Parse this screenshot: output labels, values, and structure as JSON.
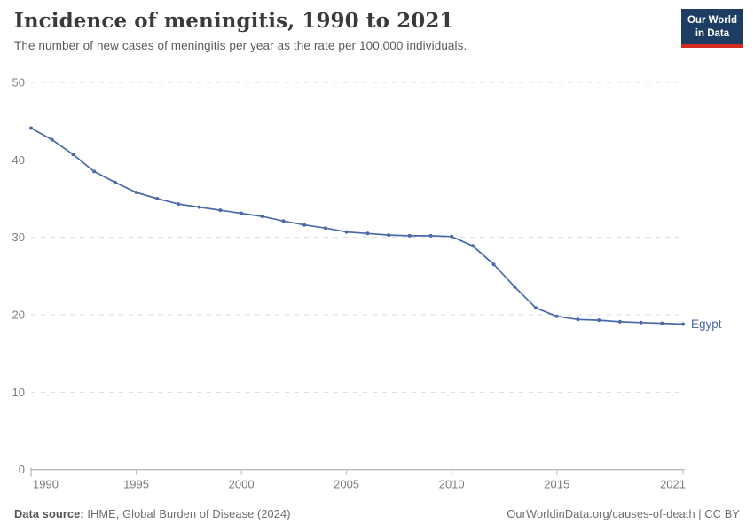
{
  "header": {
    "title": "Incidence of meningitis, 1990 to 2021",
    "subtitle": "The number of new cases of meningitis per year as the rate per 100,000 individuals.",
    "logo": {
      "line1": "Our World",
      "line2": "in Data",
      "bg_color": "#1d3d63",
      "accent_color": "#d42b21"
    }
  },
  "chart_data": {
    "type": "line",
    "title": "Incidence of meningitis, 1990 to 2021",
    "xlabel": "",
    "ylabel": "",
    "xlim": [
      1990,
      2021
    ],
    "ylim": [
      0,
      50
    ],
    "xticks": [
      1990,
      1995,
      2000,
      2005,
      2010,
      2015,
      2021
    ],
    "yticks": [
      0,
      10,
      20,
      30,
      40,
      50
    ],
    "grid": "horizontal-dashed",
    "legend_position": "end-of-line-label",
    "series": [
      {
        "name": "Egypt",
        "color": "#4a69a8",
        "x": [
          1990,
          1991,
          1992,
          1993,
          1994,
          1995,
          1996,
          1997,
          1998,
          1999,
          2000,
          2001,
          2002,
          2003,
          2004,
          2005,
          2006,
          2007,
          2008,
          2009,
          2010,
          2011,
          2012,
          2013,
          2014,
          2015,
          2016,
          2017,
          2018,
          2019,
          2020,
          2021
        ],
        "values": [
          44.1,
          42.6,
          40.7,
          38.5,
          37.1,
          35.8,
          35.0,
          34.3,
          33.9,
          33.5,
          33.1,
          32.7,
          32.1,
          31.6,
          31.2,
          30.7,
          30.5,
          30.3,
          30.2,
          30.2,
          30.1,
          28.9,
          26.5,
          23.6,
          20.9,
          19.8,
          19.4,
          19.3,
          19.1,
          19.0,
          18.9,
          18.8
        ]
      }
    ]
  },
  "footer": {
    "source_label": "Data source:",
    "source_text": " IHME, Global Burden of Disease (2024)",
    "credit": "OurWorldinData.org/causes-of-death | CC BY"
  }
}
